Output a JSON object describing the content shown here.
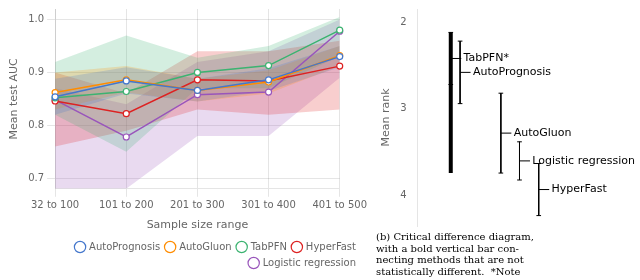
{
  "chart_data": [
    {
      "type": "line",
      "categories": [
        "32 to 100",
        "101 to 200",
        "201 to 300",
        "301 to 400",
        "401 to 500"
      ],
      "x_label": "Sample size range",
      "y_label": "Mean test AUC",
      "ylim": [
        0.68,
        1.02
      ],
      "yticks": [
        0.7,
        0.8,
        0.9,
        {
          "value": 1.0,
          "label": "1.0"
        }
      ],
      "grid": true,
      "legend": "lower right",
      "marker": "circle",
      "series": [
        {
          "name": "AutoPrognosis",
          "color": "#4477cc",
          "values": [
            0.854,
            0.884,
            0.866,
            0.886,
            0.93
          ],
          "band_lo": [
            0.82,
            0.86,
            0.845,
            0.865,
            0.91
          ],
          "band_hi": [
            0.888,
            0.91,
            0.888,
            0.908,
            0.95
          ]
        },
        {
          "name": "AutoGluon",
          "color": "#ff8c00",
          "values": [
            0.862,
            0.886,
            0.866,
            0.882,
            0.932
          ],
          "band_lo": [
            0.83,
            0.862,
            0.845,
            0.86,
            0.912
          ],
          "band_hi": [
            0.9,
            0.912,
            0.888,
            0.904,
            0.95
          ]
        },
        {
          "name": "TabPFN",
          "color": "#3cb371",
          "values": [
            0.852,
            0.864,
            0.9,
            0.913,
            0.98
          ],
          "band_lo": [
            0.82,
            0.75,
            0.87,
            0.87,
            0.93
          ],
          "band_hi": [
            0.92,
            0.97,
            0.928,
            0.95,
            1.005
          ]
        },
        {
          "name": "HyperFast",
          "color": "#dd2222",
          "values": [
            0.846,
            0.822,
            0.886,
            0.884,
            0.912
          ],
          "band_lo": [
            0.76,
            0.79,
            0.83,
            0.82,
            0.83
          ],
          "band_hi": [
            0.9,
            0.86,
            0.94,
            0.94,
            0.96
          ]
        },
        {
          "name": "Logistic regression",
          "color": "#9955bb",
          "values": [
            0.848,
            0.778,
            0.858,
            0.863,
            0.978
          ],
          "band_lo": [
            0.68,
            0.68,
            0.78,
            0.78,
            0.89
          ],
          "band_hi": [
            0.87,
            0.84,
            0.92,
            0.94,
            1.0
          ]
        }
      ]
    },
    {
      "type": "critical_difference",
      "categories": [
        "TabPFN*",
        "AutoPrognosis",
        "AutoGluon",
        "Logistic regression",
        "HyperFast"
      ],
      "values": [
        2.42,
        2.58,
        3.28,
        3.6,
        3.93
      ],
      "error_lo": [
        2.12,
        2.22,
        2.82,
        3.38,
        3.63
      ],
      "error_hi": [
        2.72,
        2.94,
        3.74,
        3.82,
        4.23
      ],
      "bold_bar": {
        "x": 2.42,
        "lo": 2.12,
        "hi": 3.74
      },
      "y_label": "Mean rank",
      "xlim": [
        1.85,
        5.6
      ],
      "ylim": [
        4.35,
        1.85
      ],
      "yticks": [
        2,
        3,
        4
      ],
      "grid": false,
      "tick_labels": "y",
      "caption": [
        "(b) Critical difference diagram,",
        "with a bold vertical bar con-",
        "necting methods that are not",
        "statistically different.  *Note"
      ]
    }
  ]
}
